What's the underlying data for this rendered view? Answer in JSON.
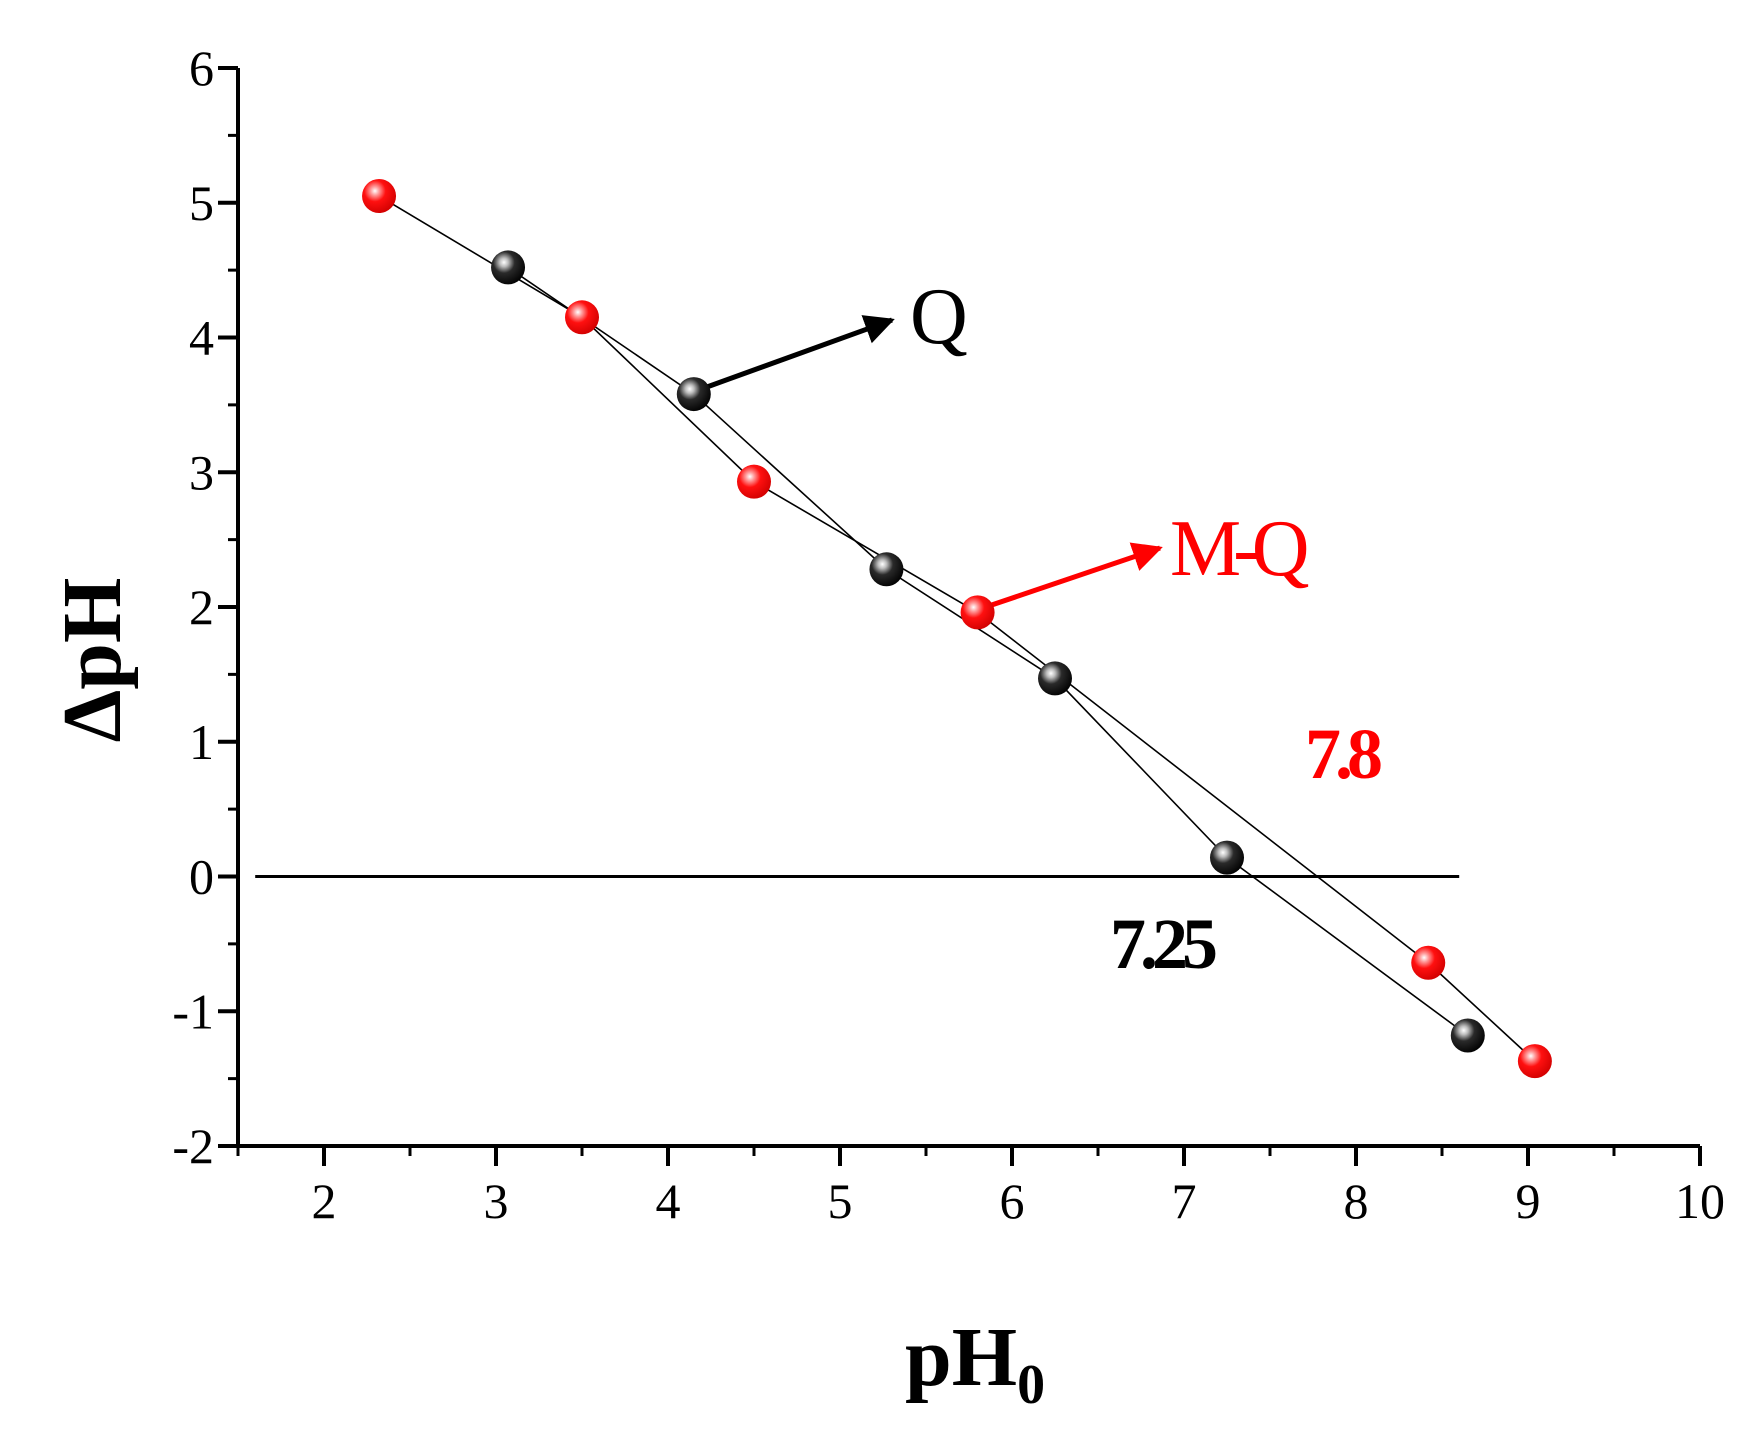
{
  "chart_data": {
    "type": "scatter",
    "xlabel": "pH",
    "xlabel_sub": "0",
    "ylabel": "ΔpH",
    "xlim": [
      1.5,
      10
    ],
    "ylim": [
      -2,
      6
    ],
    "xticks": [
      2,
      3,
      4,
      5,
      6,
      7,
      8,
      9,
      10
    ],
    "yticks": [
      -2,
      -1,
      0,
      1,
      2,
      3,
      4,
      5,
      6
    ],
    "zero_line": {
      "y": 0,
      "x_from": 1.6,
      "x_to": 8.6
    },
    "series": [
      {
        "name": "Q",
        "color": "#000000",
        "x": [
          3.07,
          4.15,
          5.27,
          6.25,
          7.25,
          8.65
        ],
        "y": [
          4.52,
          3.58,
          2.28,
          1.47,
          0.14,
          -1.18
        ]
      },
      {
        "name": "M-Q",
        "color": "#ff0000",
        "x": [
          2.32,
          3.5,
          4.5,
          5.8,
          8.42,
          9.04
        ],
        "y": [
          5.05,
          4.15,
          2.93,
          1.96,
          -0.64,
          -1.37
        ]
      }
    ],
    "annotations": [
      {
        "text": "7.25",
        "color": "#000000"
      },
      {
        "text": "7.8",
        "color": "#ff0000"
      }
    ]
  }
}
